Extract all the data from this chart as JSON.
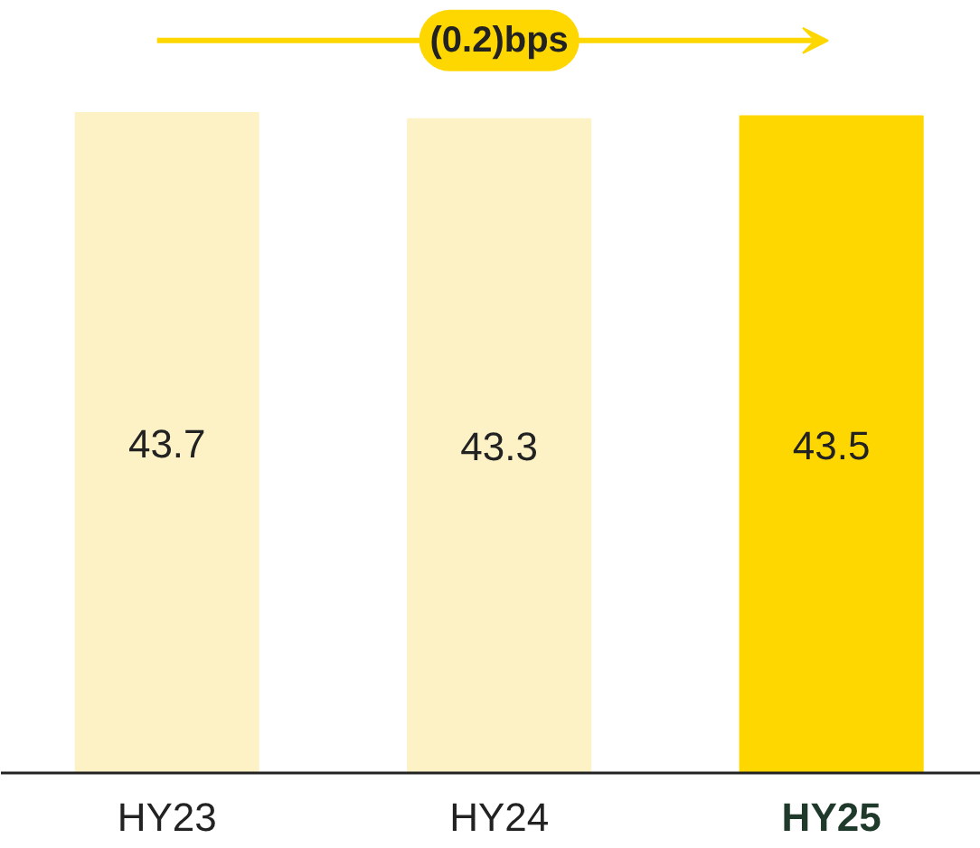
{
  "chart_data": {
    "type": "bar",
    "categories": [
      "HY23",
      "HY24",
      "HY25"
    ],
    "values": [
      43.7,
      43.3,
      43.5
    ],
    "colors": [
      "#fdf1c6",
      "#fdf1c6",
      "#ffd700"
    ],
    "data_labels": true,
    "annotations": [
      "(0.2)bps"
    ]
  }
}
